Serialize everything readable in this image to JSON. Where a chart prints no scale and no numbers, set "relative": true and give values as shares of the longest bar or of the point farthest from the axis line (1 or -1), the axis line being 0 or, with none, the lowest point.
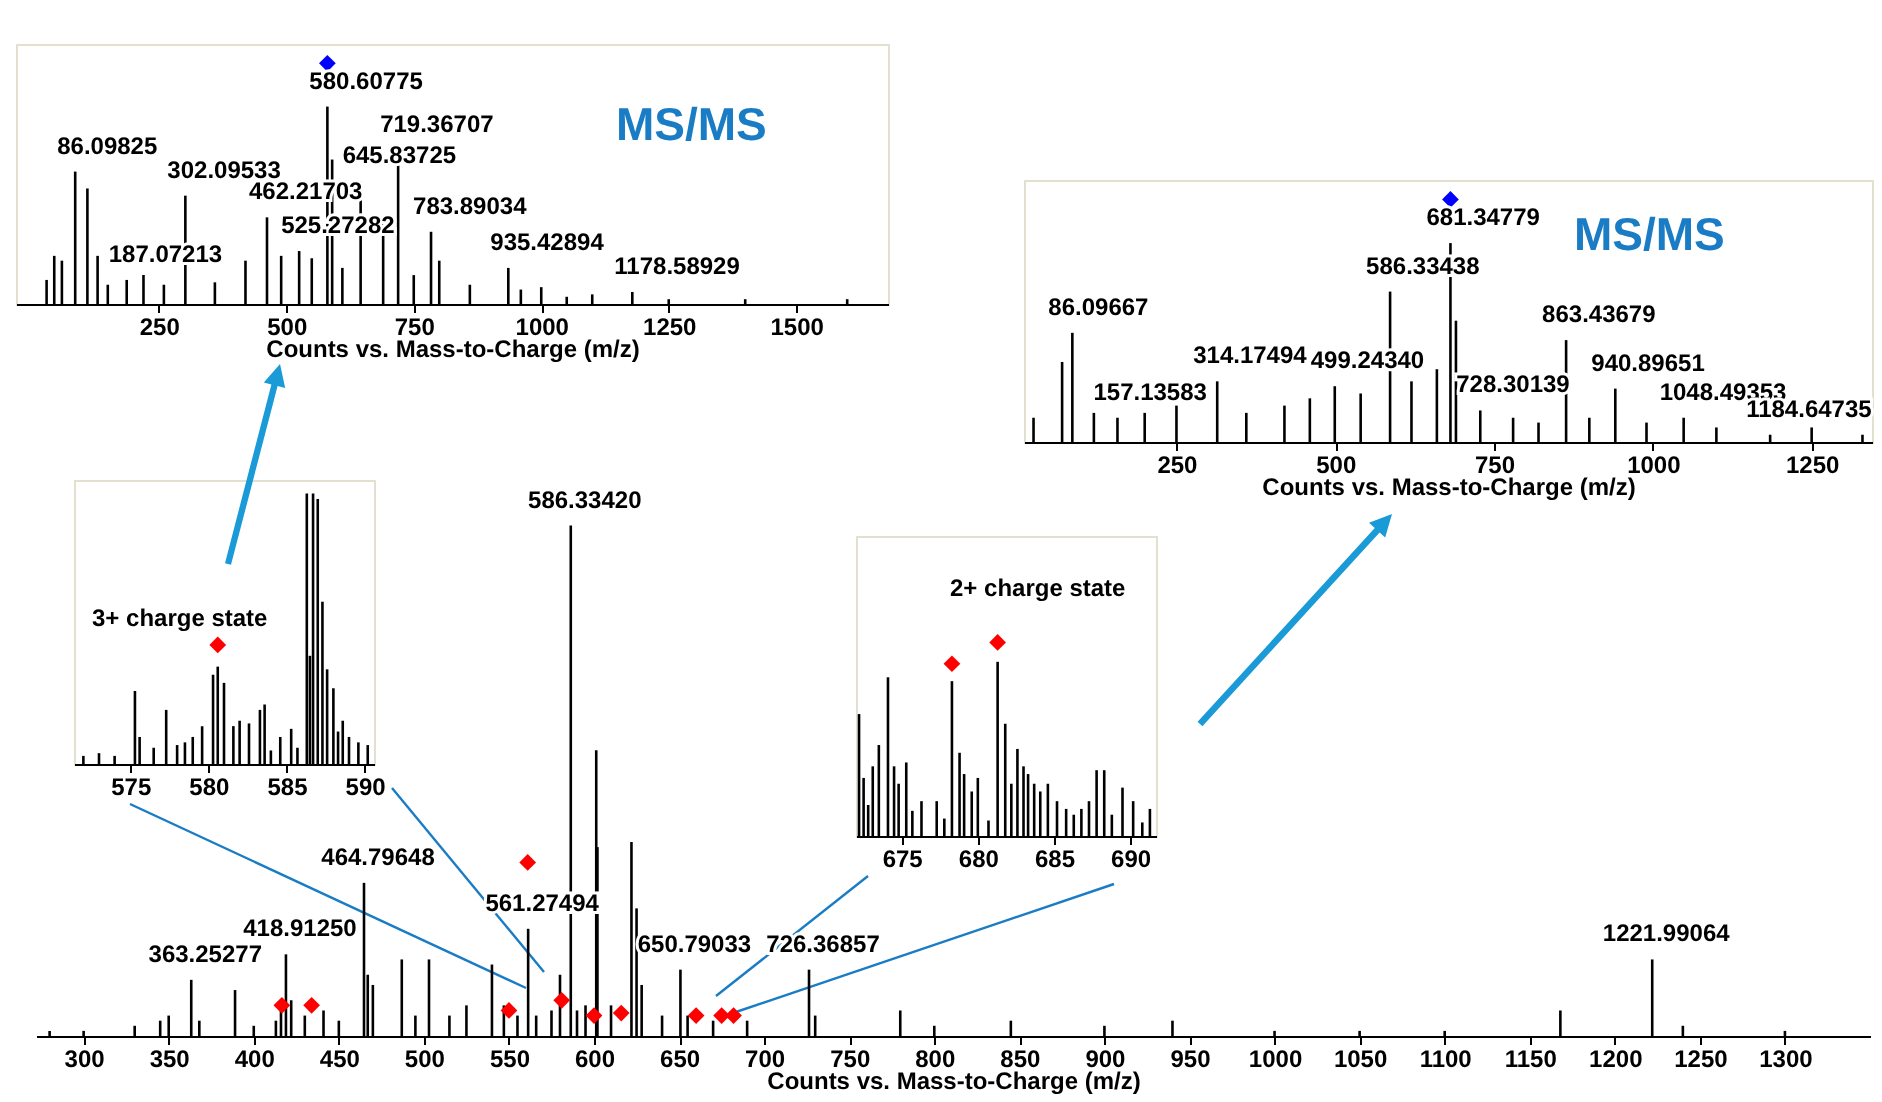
{
  "chart_data": [
    {
      "type": "bar",
      "relative": true,
      "xlabel": "Counts vs. Mass-to-Charge (m/z)",
      "xlim": [
        -30,
        1680
      ],
      "xticks": [
        250,
        500,
        750,
        1000,
        1250,
        1500
      ],
      "tick_labels": "x",
      "annotations": [
        "MS/MS",
        {
          "text": "86.09825",
          "x": 86.09825,
          "y": 0.55
        },
        {
          "text": "187.07213",
          "x": 187.07213,
          "y": 0.1
        },
        {
          "text": "302.09533",
          "x": 302.09533,
          "y": 0.45
        },
        {
          "text": "462.21703",
          "x": 462.21703,
          "y": 0.36
        },
        {
          "text": "525.27282",
          "x": 525.27282,
          "y": 0.22
        },
        {
          "text": "580.60775",
          "x": 580.60775,
          "y": 0.82
        },
        {
          "text": "645.83725",
          "x": 645.83725,
          "y": 0.51
        },
        {
          "text": "719.36707",
          "x": 719.36707,
          "y": 0.64
        },
        {
          "text": "783.89034",
          "x": 783.89034,
          "y": 0.3
        },
        {
          "text": "935.42894",
          "x": 935.42894,
          "y": 0.15
        },
        {
          "text": "1178.58929",
          "x": 1178.58929,
          "y": 0.05
        }
      ],
      "series": [
        {
          "color": "#000000",
          "x": [
            30,
            45,
            60,
            86.09825,
            110,
            130,
            150,
            187.07213,
            220,
            260,
            302.09533,
            360,
            420,
            462.21703,
            490,
            525.27282,
            550,
            580.60775,
            590,
            610,
            645.83725,
            690,
            719.36707,
            750,
            783.89034,
            800,
            860,
            935.42894,
            960,
            1000,
            1050,
            1100,
            1178.58929,
            1250,
            1400,
            1600
          ],
          "values": [
            0.1,
            0.2,
            0.18,
            0.55,
            0.48,
            0.2,
            0.08,
            0.1,
            0.12,
            0.08,
            0.45,
            0.09,
            0.18,
            0.36,
            0.2,
            0.22,
            0.19,
            0.82,
            0.6,
            0.15,
            0.51,
            0.36,
            0.64,
            0.12,
            0.3,
            0.18,
            0.08,
            0.15,
            0.06,
            0.07,
            0.03,
            0.04,
            0.05,
            0.02,
            0.02,
            0.02
          ]
        },
        {
          "type": "scatter",
          "marker": "diamond",
          "color": "#0000ff",
          "x": [
            580.60775
          ],
          "values": [
            1
          ]
        }
      ]
    },
    {
      "type": "bar",
      "relative": true,
      "xlabel": "Counts vs. Mass-to-Charge (m/z)",
      "xlim": [
        10,
        1345
      ],
      "xticks": [
        250,
        500,
        750,
        1000,
        1250
      ],
      "tick_labels": "x",
      "annotations": [
        "MS/MS",
        {
          "text": "86.09667",
          "x": 86.09667,
          "y": 0.45
        },
        {
          "text": "157.13583",
          "x": 157.13583,
          "y": 0.1
        },
        {
          "text": "314.17494",
          "x": 314.17494,
          "y": 0.25
        },
        {
          "text": "499.24340",
          "x": 499.2434,
          "y": 0.23
        },
        {
          "text": "586.33438",
          "x": 586.33438,
          "y": 0.62
        },
        {
          "text": "681.34779",
          "x": 681.34779,
          "y": 0.82
        },
        {
          "text": "728.30139",
          "x": 728.30139,
          "y": 0.13
        },
        {
          "text": "863.43679",
          "x": 863.43679,
          "y": 0.42
        },
        {
          "text": "940.89651",
          "x": 940.89651,
          "y": 0.22
        },
        {
          "text": "1048.49353",
          "x": 1048.49353,
          "y": 0.1
        },
        {
          "text": "1184.64735",
          "x": 1184.64735,
          "y": 0.03
        }
      ],
      "series": [
        {
          "color": "#000000",
          "x": [
            25,
            70,
            86.09667,
            120,
            157.13583,
            200,
            250,
            314.17494,
            360,
            420,
            460,
            499.2434,
            540,
            586.33438,
            620,
            660,
            681.34779,
            690,
            728.30139,
            780,
            820,
            863.43679,
            900,
            940.89651,
            990,
            1048.49353,
            1100,
            1184.64735,
            1250,
            1330
          ],
          "values": [
            0.1,
            0.33,
            0.45,
            0.12,
            0.1,
            0.12,
            0.15,
            0.25,
            0.12,
            0.15,
            0.18,
            0.23,
            0.2,
            0.62,
            0.25,
            0.3,
            0.82,
            0.5,
            0.13,
            0.1,
            0.08,
            0.42,
            0.1,
            0.22,
            0.08,
            0.1,
            0.06,
            0.03,
            0.06,
            0.03
          ]
        },
        {
          "type": "scatter",
          "marker": "diamond",
          "color": "#0000ff",
          "x": [
            681.34779
          ],
          "values": [
            1
          ]
        }
      ]
    },
    {
      "type": "bar",
      "relative": true,
      "xlabel": "Counts vs. Mass-to-Charge (m/z)",
      "xlim": [
        272,
        1350
      ],
      "xticks": [
        300,
        350,
        400,
        450,
        500,
        550,
        600,
        650,
        700,
        750,
        800,
        850,
        900,
        950,
        1000,
        1050,
        1100,
        1150,
        1200,
        1250,
        1300
      ],
      "tick_labels": "x",
      "annotations": [
        {
          "text": "363.25277",
          "x": 363.25277,
          "y": 0.11
        },
        {
          "text": "418.91250",
          "x": 418.9125,
          "y": 0.16
        },
        {
          "text": "464.79648",
          "x": 464.79648,
          "y": 0.3
        },
        {
          "text": "561.27494",
          "x": 561.27494,
          "y": 0.21
        },
        {
          "text": "586.33420",
          "x": 586.3342,
          "y": 1
        },
        {
          "text": "650.79033",
          "x": 650.79033,
          "y": 0.13
        },
        {
          "text": "726.36857",
          "x": 726.36857,
          "y": 0.13
        },
        {
          "text": "1221.99064",
          "x": 1221.99064,
          "y": 0.15
        }
      ],
      "series": [
        {
          "color": "#000000",
          "x": [
            280,
            300,
            330,
            345,
            350,
            363.25277,
            368,
            389,
            400,
            413,
            416,
            418.9125,
            422,
            430,
            441,
            450,
            464.79648,
            467,
            470,
            487,
            495,
            503,
            515,
            525,
            540,
            547,
            555,
            561.27494,
            566,
            575,
            580,
            586.3342,
            590,
            595,
            601.3,
            602,
            610,
            622,
            625,
            628,
            640,
            650.79033,
            655,
            670,
            690,
            726.36857,
            730,
            780,
            800,
            845,
            900,
            940,
            1000,
            1050,
            1100,
            1168,
            1221.99064,
            1240,
            1300
          ],
          "values": [
            0.01,
            0.01,
            0.02,
            0.03,
            0.04,
            0.11,
            0.03,
            0.09,
            0.02,
            0.03,
            0.05,
            0.16,
            0.07,
            0.04,
            0.05,
            0.03,
            0.3,
            0.12,
            0.1,
            0.15,
            0.04,
            0.15,
            0.04,
            0.06,
            0.14,
            0.06,
            0.04,
            0.21,
            0.04,
            0.05,
            0.12,
            1,
            0.05,
            0.06,
            0.56,
            0.37,
            0.06,
            0.38,
            0.25,
            0.1,
            0.04,
            0.13,
            0.04,
            0.03,
            0.03,
            0.13,
            0.04,
            0.05,
            0.02,
            0.03,
            0.02,
            0.03,
            0.01,
            0.01,
            0.01,
            0.05,
            0.15,
            0.02,
            0.01
          ]
        },
        {
          "type": "scatter",
          "marker": "diamond",
          "color": "#ff0000",
          "x": [
            416.5,
            434,
            550,
            561,
            581,
            600,
            616,
            660,
            675,
            682
          ],
          "values": [
            0.06,
            0.06,
            0.05,
            0.34,
            0.07,
            0.04,
            0.045,
            0.04,
            0.04,
            0.04
          ]
        }
      ]
    },
    {
      "type": "bar",
      "relative": true,
      "xlim": [
        571.4,
        590.6
      ],
      "xticks": [
        575,
        580,
        585,
        590
      ],
      "tick_labels": "x",
      "annotations": [
        "3+ charge state"
      ],
      "series": [
        {
          "color": "#000000",
          "x": [
            572,
            573,
            574,
            575.3,
            575.6,
            576.5,
            577.3,
            578,
            578.5,
            579,
            579.6,
            580.3,
            580.6,
            581,
            581.6,
            582,
            582.6,
            583.3,
            583.6,
            584,
            584.6,
            585.3,
            585.7,
            586.3,
            586.5,
            586.7,
            587,
            587.3,
            587.6,
            588,
            588.3,
            588.6,
            589,
            589.6,
            590.2
          ],
          "values": [
            0.03,
            0.04,
            0.03,
            0.27,
            0.1,
            0.06,
            0.2,
            0.07,
            0.08,
            0.1,
            0.14,
            0.33,
            0.36,
            0.3,
            0.14,
            0.16,
            0.15,
            0.2,
            0.22,
            0.05,
            0.1,
            0.13,
            0.06,
            1,
            0.4,
            1,
            0.98,
            0.6,
            0.35,
            0.28,
            0.12,
            0.16,
            0.1,
            0.08,
            0.07
          ]
        },
        {
          "type": "scatter",
          "marker": "diamond",
          "color": "#ff0000",
          "x": [
            580.6
          ],
          "values": [
            0.44
          ]
        }
      ]
    },
    {
      "type": "bar",
      "relative": true,
      "xlim": [
        672,
        691.7
      ],
      "xticks": [
        675,
        680,
        685,
        690
      ],
      "tick_labels": "x",
      "annotations": [
        "2+ charge state"
      ],
      "series": [
        {
          "color": "#000000",
          "x": [
            672.2,
            672.5,
            672.8,
            673.1,
            673.5,
            674.1,
            674.5,
            674.8,
            675.3,
            675.7,
            676.3,
            677.3,
            677.8,
            678.3,
            678.8,
            679.1,
            679.6,
            680,
            680.7,
            681.3,
            681.8,
            682.2,
            682.6,
            683,
            683.3,
            683.7,
            684.1,
            684.6,
            685.2,
            685.8,
            686.3,
            686.8,
            687.3,
            687.8,
            688.3,
            688.8,
            689.5,
            690.2,
            690.8,
            691.3
          ],
          "values": [
            0.63,
            0.3,
            0.16,
            0.36,
            0.47,
            0.82,
            0.36,
            0.27,
            0.38,
            0.13,
            0.18,
            0.18,
            0.09,
            0.8,
            0.43,
            0.32,
            0.23,
            0.3,
            0.08,
            0.9,
            0.58,
            0.27,
            0.45,
            0.36,
            0.32,
            0.27,
            0.23,
            0.27,
            0.18,
            0.14,
            0.11,
            0.14,
            0.18,
            0.34,
            0.34,
            0.11,
            0.25,
            0.18,
            0.07,
            0.14
          ]
        },
        {
          "type": "scatter",
          "marker": "diamond",
          "color": "#ff0000",
          "x": [
            678.3,
            681.3
          ],
          "values": [
            0.89,
            1
          ]
        }
      ]
    }
  ]
}
